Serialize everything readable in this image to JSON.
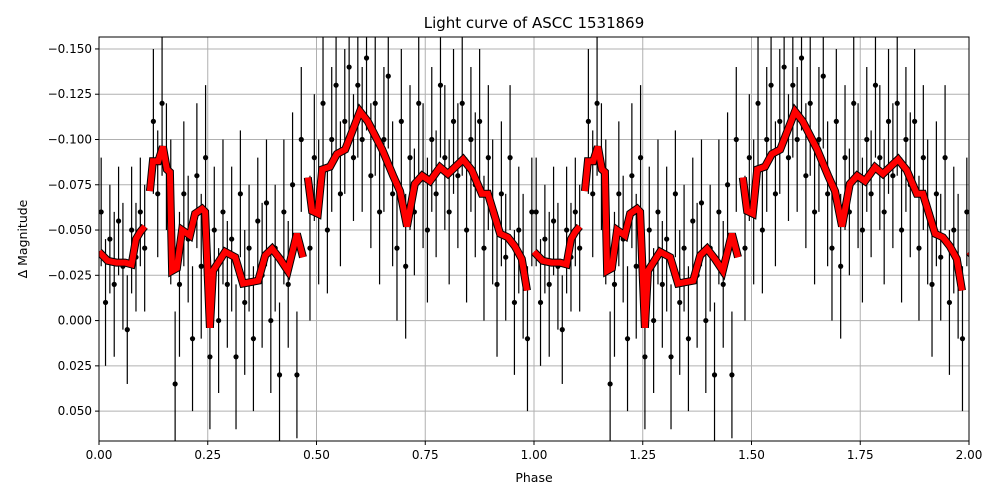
{
  "chart_data": {
    "type": "scatter",
    "title": "Light curve of ASCC 1531869",
    "xlabel": "Phase",
    "ylabel": "Δ Magnitude",
    "xlim": [
      0.0,
      2.0
    ],
    "ylim": [
      0.0665,
      -0.1566
    ],
    "y_inverted": true,
    "grid": true,
    "x_ticks": [
      "0.00",
      "0.25",
      "0.50",
      "0.75",
      "1.00",
      "1.25",
      "1.50",
      "1.75",
      "2.00"
    ],
    "y_ticks": [
      "−0.150",
      "−0.125",
      "−0.100",
      "−0.075",
      "−0.050",
      "−0.025",
      "0.000",
      "0.025",
      "0.050"
    ],
    "colors": {
      "points": "#000000",
      "binned_curve": "#ff0000",
      "grid": "#b0b0b0"
    },
    "fold_repeats": 2,
    "observations_phase_mag_err": [
      [
        0.005,
        -0.06,
        0.03
      ],
      [
        0.015,
        -0.01,
        0.035
      ],
      [
        0.025,
        -0.045,
        0.03
      ],
      [
        0.035,
        -0.02,
        0.04
      ],
      [
        0.045,
        -0.055,
        0.03
      ],
      [
        0.055,
        -0.03,
        0.035
      ],
      [
        0.065,
        0.005,
        0.03
      ],
      [
        0.075,
        -0.05,
        0.035
      ],
      [
        0.085,
        -0.035,
        0.03
      ],
      [
        0.095,
        -0.06,
        0.03
      ],
      [
        0.105,
        -0.04,
        0.035
      ],
      [
        0.125,
        -0.11,
        0.04
      ],
      [
        0.135,
        -0.07,
        0.035
      ],
      [
        0.145,
        -0.12,
        0.04
      ],
      [
        0.155,
        -0.085,
        0.035
      ],
      [
        0.165,
        -0.06,
        0.04
      ],
      [
        0.175,
        0.035,
        0.04
      ],
      [
        0.185,
        -0.02,
        0.04
      ],
      [
        0.195,
        -0.07,
        0.04
      ],
      [
        0.205,
        -0.045,
        0.035
      ],
      [
        0.215,
        0.01,
        0.04
      ],
      [
        0.225,
        -0.08,
        0.04
      ],
      [
        0.235,
        -0.03,
        0.04
      ],
      [
        0.245,
        -0.09,
        0.04
      ],
      [
        0.255,
        0.02,
        0.04
      ],
      [
        0.265,
        -0.05,
        0.035
      ],
      [
        0.275,
        0.0,
        0.04
      ],
      [
        0.285,
        -0.06,
        0.04
      ],
      [
        0.295,
        -0.02,
        0.035
      ],
      [
        0.305,
        -0.045,
        0.04
      ],
      [
        0.315,
        0.02,
        0.04
      ],
      [
        0.325,
        -0.07,
        0.035
      ],
      [
        0.335,
        -0.01,
        0.04
      ],
      [
        0.345,
        -0.04,
        0.035
      ],
      [
        0.355,
        0.01,
        0.04
      ],
      [
        0.365,
        -0.055,
        0.035
      ],
      [
        0.375,
        -0.025,
        0.04
      ],
      [
        0.385,
        -0.065,
        0.035
      ],
      [
        0.395,
        0.0,
        0.04
      ],
      [
        0.405,
        -0.04,
        0.035
      ],
      [
        0.415,
        0.03,
        0.04
      ],
      [
        0.425,
        -0.06,
        0.04
      ],
      [
        0.435,
        -0.02,
        0.035
      ],
      [
        0.445,
        -0.075,
        0.04
      ],
      [
        0.455,
        0.03,
        0.035
      ],
      [
        0.465,
        -0.1,
        0.04
      ],
      [
        0.485,
        -0.04,
        0.04
      ],
      [
        0.495,
        -0.09,
        0.035
      ],
      [
        0.505,
        -0.06,
        0.04
      ],
      [
        0.515,
        -0.12,
        0.04
      ],
      [
        0.525,
        -0.05,
        0.035
      ],
      [
        0.535,
        -0.1,
        0.04
      ],
      [
        0.545,
        -0.13,
        0.04
      ],
      [
        0.555,
        -0.07,
        0.04
      ],
      [
        0.565,
        -0.11,
        0.04
      ],
      [
        0.575,
        -0.14,
        0.04
      ],
      [
        0.585,
        -0.09,
        0.035
      ],
      [
        0.595,
        -0.13,
        0.04
      ],
      [
        0.605,
        -0.1,
        0.04
      ],
      [
        0.615,
        -0.145,
        0.04
      ],
      [
        0.625,
        -0.08,
        0.04
      ],
      [
        0.635,
        -0.12,
        0.04
      ],
      [
        0.645,
        -0.06,
        0.04
      ],
      [
        0.655,
        -0.1,
        0.04
      ],
      [
        0.665,
        -0.135,
        0.04
      ],
      [
        0.675,
        -0.07,
        0.04
      ],
      [
        0.685,
        -0.04,
        0.04
      ],
      [
        0.695,
        -0.11,
        0.04
      ],
      [
        0.705,
        -0.03,
        0.04
      ],
      [
        0.715,
        -0.09,
        0.04
      ],
      [
        0.725,
        -0.06,
        0.035
      ],
      [
        0.735,
        -0.12,
        0.04
      ],
      [
        0.745,
        -0.08,
        0.04
      ],
      [
        0.755,
        -0.05,
        0.04
      ],
      [
        0.765,
        -0.1,
        0.04
      ],
      [
        0.775,
        -0.07,
        0.035
      ],
      [
        0.785,
        -0.13,
        0.04
      ],
      [
        0.795,
        -0.09,
        0.04
      ],
      [
        0.805,
        -0.06,
        0.04
      ],
      [
        0.815,
        -0.11,
        0.04
      ],
      [
        0.825,
        -0.08,
        0.04
      ],
      [
        0.835,
        -0.12,
        0.04
      ],
      [
        0.845,
        -0.05,
        0.04
      ],
      [
        0.855,
        -0.1,
        0.04
      ],
      [
        0.865,
        -0.075,
        0.04
      ],
      [
        0.875,
        -0.11,
        0.04
      ],
      [
        0.885,
        -0.04,
        0.04
      ],
      [
        0.895,
        -0.09,
        0.04
      ],
      [
        0.905,
        -0.06,
        0.04
      ],
      [
        0.915,
        -0.02,
        0.04
      ],
      [
        0.925,
        -0.07,
        0.04
      ],
      [
        0.935,
        -0.035,
        0.035
      ],
      [
        0.945,
        -0.09,
        0.04
      ],
      [
        0.955,
        -0.01,
        0.04
      ],
      [
        0.965,
        -0.05,
        0.035
      ],
      [
        0.975,
        -0.03,
        0.04
      ],
      [
        0.985,
        0.01,
        0.04
      ],
      [
        0.995,
        -0.06,
        0.03
      ]
    ],
    "binned_curve_segments": [
      [
        [
          0.0,
          -0.038
        ],
        [
          0.02,
          -0.033
        ],
        [
          0.04,
          -0.032
        ],
        [
          0.06,
          -0.032
        ],
        [
          0.075,
          -0.031
        ],
        [
          0.085,
          -0.045
        ],
        [
          0.095,
          -0.049
        ],
        [
          0.105,
          -0.052
        ]
      ],
      [
        [
          0.117,
          -0.0715
        ],
        [
          0.124,
          -0.088
        ],
        [
          0.136,
          -0.088
        ],
        [
          0.147,
          -0.096
        ],
        [
          0.156,
          -0.0835
        ],
        [
          0.163,
          -0.082
        ],
        [
          0.168,
          -0.0275
        ],
        [
          0.179,
          -0.029
        ],
        [
          0.191,
          -0.05
        ],
        [
          0.209,
          -0.047
        ],
        [
          0.221,
          -0.059
        ],
        [
          0.237,
          -0.0617
        ],
        [
          0.244,
          -0.06
        ],
        [
          0.255,
          0.004
        ],
        [
          0.262,
          -0.0275
        ],
        [
          0.29,
          -0.038
        ],
        [
          0.313,
          -0.035
        ],
        [
          0.331,
          -0.0205
        ],
        [
          0.366,
          -0.022
        ],
        [
          0.382,
          -0.036
        ],
        [
          0.398,
          -0.0397
        ],
        [
          0.416,
          -0.034
        ],
        [
          0.434,
          -0.0275
        ],
        [
          0.455,
          -0.048
        ],
        [
          0.469,
          -0.035
        ]
      ],
      [
        [
          0.48,
          -0.079
        ],
        [
          0.49,
          -0.0605
        ],
        [
          0.503,
          -0.059
        ],
        [
          0.513,
          -0.0835
        ],
        [
          0.531,
          -0.085
        ],
        [
          0.547,
          -0.092
        ],
        [
          0.566,
          -0.0945
        ],
        [
          0.6,
          -0.1155
        ],
        [
          0.618,
          -0.11
        ],
        [
          0.651,
          -0.0945
        ],
        [
          0.676,
          -0.08
        ],
        [
          0.692,
          -0.0715
        ],
        [
          0.708,
          -0.052
        ],
        [
          0.726,
          -0.0755
        ],
        [
          0.743,
          -0.08
        ],
        [
          0.761,
          -0.077
        ],
        [
          0.784,
          -0.0847
        ],
        [
          0.802,
          -0.081
        ],
        [
          0.837,
          -0.089
        ],
        [
          0.857,
          -0.083
        ],
        [
          0.88,
          -0.07
        ],
        [
          0.894,
          -0.07
        ],
        [
          0.922,
          -0.048
        ],
        [
          0.94,
          -0.046
        ],
        [
          0.956,
          -0.041
        ],
        [
          0.972,
          -0.034
        ],
        [
          0.984,
          -0.0166
        ]
      ]
    ]
  }
}
